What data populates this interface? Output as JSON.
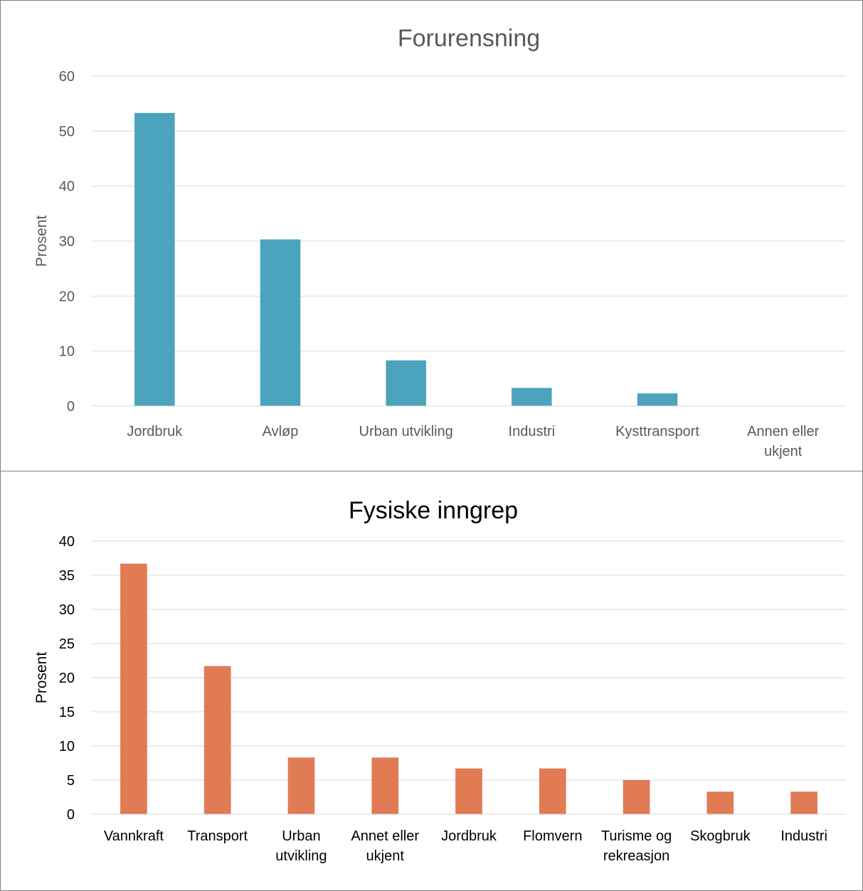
{
  "chart_data": [
    {
      "type": "bar",
      "title": "Forurensning",
      "ylabel": "Prosent",
      "xlabel": "",
      "ylim": [
        0,
        60
      ],
      "yticks": [
        0,
        10,
        20,
        30,
        40,
        50,
        60
      ],
      "categories": [
        "Jordbruk",
        "Avløp",
        "Urban utvikling",
        "Industri",
        "Kysttransport",
        "Annen eller ukjent"
      ],
      "values": [
        53.3,
        30.3,
        8.3,
        3.3,
        2.3,
        0
      ],
      "color": "#4ba3bd",
      "grid": true,
      "legend": "none"
    },
    {
      "type": "bar",
      "title": "Fysiske inngrep",
      "ylabel": "Prosent",
      "xlabel": "",
      "ylim": [
        0,
        40
      ],
      "yticks": [
        0,
        5,
        10,
        15,
        20,
        25,
        30,
        35,
        40
      ],
      "categories": [
        "Vannkraft",
        "Transport",
        "Urban utvikling",
        "Annet eller ukjent",
        "Jordbruk",
        "Flomvern",
        "Turisme og rekreasjon",
        "Skogbruk",
        "Industri"
      ],
      "values": [
        36.7,
        21.7,
        8.3,
        8.3,
        6.7,
        6.7,
        5.0,
        3.3,
        3.3
      ],
      "color": "#e07b54",
      "grid": true,
      "legend": "none"
    }
  ]
}
